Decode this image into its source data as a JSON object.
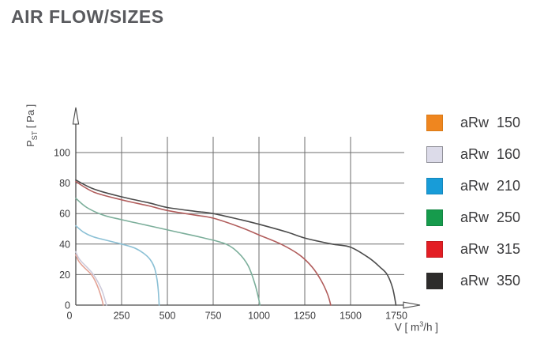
{
  "page": {
    "title": "AIR FLOW/SIZES"
  },
  "chart_data": {
    "type": "line",
    "title": "AIR FLOW/SIZES",
    "xlabel": {
      "base": "V [ m",
      "sup": "3",
      "rest": "/h ]"
    },
    "ylabel": {
      "base": "P",
      "sub": "ST",
      "rest": " [ Pa ]"
    },
    "x_ticks": [
      0,
      250,
      500,
      750,
      1000,
      1250,
      1500,
      1750
    ],
    "y_ticks": [
      0,
      20,
      40,
      60,
      80,
      100
    ],
    "x_gridlines": [
      250,
      500,
      750,
      1000,
      1250,
      1500
    ],
    "y_gridlines": [
      20,
      40,
      60,
      80,
      100
    ],
    "xlim": [
      0,
      1790
    ],
    "ylim": [
      0,
      110
    ],
    "grid": true,
    "legend_position": "right",
    "axis_color": "#4a4a4a",
    "grid_color": "#6e6e6e",
    "tick_color": "#3a3a3c",
    "series": [
      {
        "model": "aRw",
        "size": "150",
        "legend_color": "#EF861F",
        "legend_border": "#d97a16",
        "curve_color": "#e3a295",
        "points": [
          [
            0,
            33
          ],
          [
            15,
            29
          ],
          [
            35,
            26
          ],
          [
            60,
            23
          ],
          [
            85,
            20
          ],
          [
            105,
            16
          ],
          [
            120,
            12
          ],
          [
            132,
            8
          ],
          [
            142,
            4
          ],
          [
            150,
            0
          ]
        ]
      },
      {
        "model": "aRw",
        "size": "160",
        "legend_color": "#DCDBE9",
        "legend_border": "#8f8f98",
        "curve_color": "#cecbdb",
        "points": [
          [
            0,
            35
          ],
          [
            15,
            31
          ],
          [
            35,
            28
          ],
          [
            60,
            25
          ],
          [
            90,
            21
          ],
          [
            112,
            17
          ],
          [
            130,
            13
          ],
          [
            145,
            9
          ],
          [
            158,
            4
          ],
          [
            168,
            0
          ]
        ]
      },
      {
        "model": "aRw",
        "size": "210",
        "legend_color": "#189CD8",
        "legend_border": "#1486bc",
        "curve_color": "#8bc0d5",
        "points": [
          [
            0,
            52
          ],
          [
            40,
            48
          ],
          [
            90,
            45
          ],
          [
            150,
            43
          ],
          [
            250,
            40
          ],
          [
            320,
            37.5
          ],
          [
            370,
            34
          ],
          [
            405,
            30
          ],
          [
            428,
            25
          ],
          [
            442,
            18
          ],
          [
            450,
            10
          ],
          [
            455,
            0
          ]
        ]
      },
      {
        "model": "aRw",
        "size": "250",
        "legend_color": "#169B4C",
        "legend_border": "#128542",
        "curve_color": "#7bae9a",
        "points": [
          [
            0,
            70
          ],
          [
            60,
            64
          ],
          [
            150,
            59
          ],
          [
            250,
            56
          ],
          [
            400,
            52
          ],
          [
            550,
            48
          ],
          [
            700,
            44
          ],
          [
            820,
            40
          ],
          [
            890,
            34
          ],
          [
            940,
            26
          ],
          [
            975,
            15
          ],
          [
            995,
            6
          ],
          [
            1005,
            0
          ]
        ]
      },
      {
        "model": "aRw",
        "size": "315",
        "legend_color": "#E31E24",
        "legend_border": "#c31a1f",
        "curve_color": "#b15d5c",
        "points": [
          [
            0,
            81
          ],
          [
            100,
            74
          ],
          [
            250,
            69
          ],
          [
            400,
            65
          ],
          [
            500,
            62
          ],
          [
            650,
            59
          ],
          [
            750,
            57
          ],
          [
            900,
            51
          ],
          [
            1000,
            46
          ],
          [
            1120,
            40
          ],
          [
            1220,
            33
          ],
          [
            1290,
            25
          ],
          [
            1340,
            16
          ],
          [
            1375,
            7
          ],
          [
            1392,
            0
          ]
        ]
      },
      {
        "model": "aRw",
        "size": "350",
        "legend_color": "#2D2C2B",
        "legend_border": "#2d2c2b",
        "curve_color": "#4b4b4b",
        "points": [
          [
            0,
            82
          ],
          [
            100,
            76
          ],
          [
            250,
            71
          ],
          [
            400,
            67
          ],
          [
            500,
            64
          ],
          [
            650,
            61.5
          ],
          [
            750,
            60
          ],
          [
            900,
            56
          ],
          [
            1000,
            53
          ],
          [
            1150,
            48
          ],
          [
            1250,
            44
          ],
          [
            1400,
            40
          ],
          [
            1500,
            38
          ],
          [
            1600,
            31
          ],
          [
            1660,
            25
          ],
          [
            1700,
            20
          ],
          [
            1730,
            11
          ],
          [
            1748,
            0
          ]
        ]
      }
    ]
  }
}
